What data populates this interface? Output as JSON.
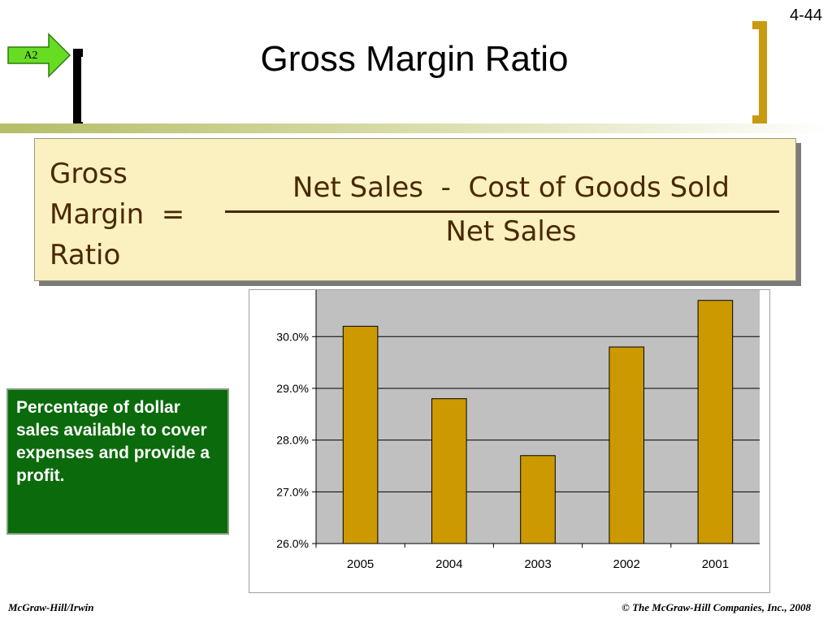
{
  "slide": {
    "number": "4-44",
    "objective_tag": "A2",
    "title": "Gross Margin Ratio"
  },
  "formula": {
    "left_lines": [
      "Gross",
      "Margin  =",
      "Ratio"
    ],
    "numerator": "Net Sales  -  Cost of Goods Sold",
    "denominator": "Net Sales"
  },
  "note": {
    "text": "Percentage of dollar sales available to cover expenses and provide a profit."
  },
  "chart_data": {
    "type": "bar",
    "categories": [
      "2005",
      "2004",
      "2003",
      "2002",
      "2001"
    ],
    "values": [
      30.2,
      28.8,
      27.7,
      29.8,
      30.7
    ],
    "y_tick_labels": [
      "26.0%",
      "27.0%",
      "28.0%",
      "29.0%",
      "30.0%"
    ],
    "ylim": [
      26.0,
      30.9
    ],
    "grid": true,
    "colors": {
      "bar": "#cc9a00",
      "plot_background": "#c0c0c0",
      "grid": "#000000"
    }
  },
  "footer": {
    "left": "McGraw-Hill/Irwin",
    "right": "© The McGraw-Hill Companies, Inc., 2008"
  }
}
